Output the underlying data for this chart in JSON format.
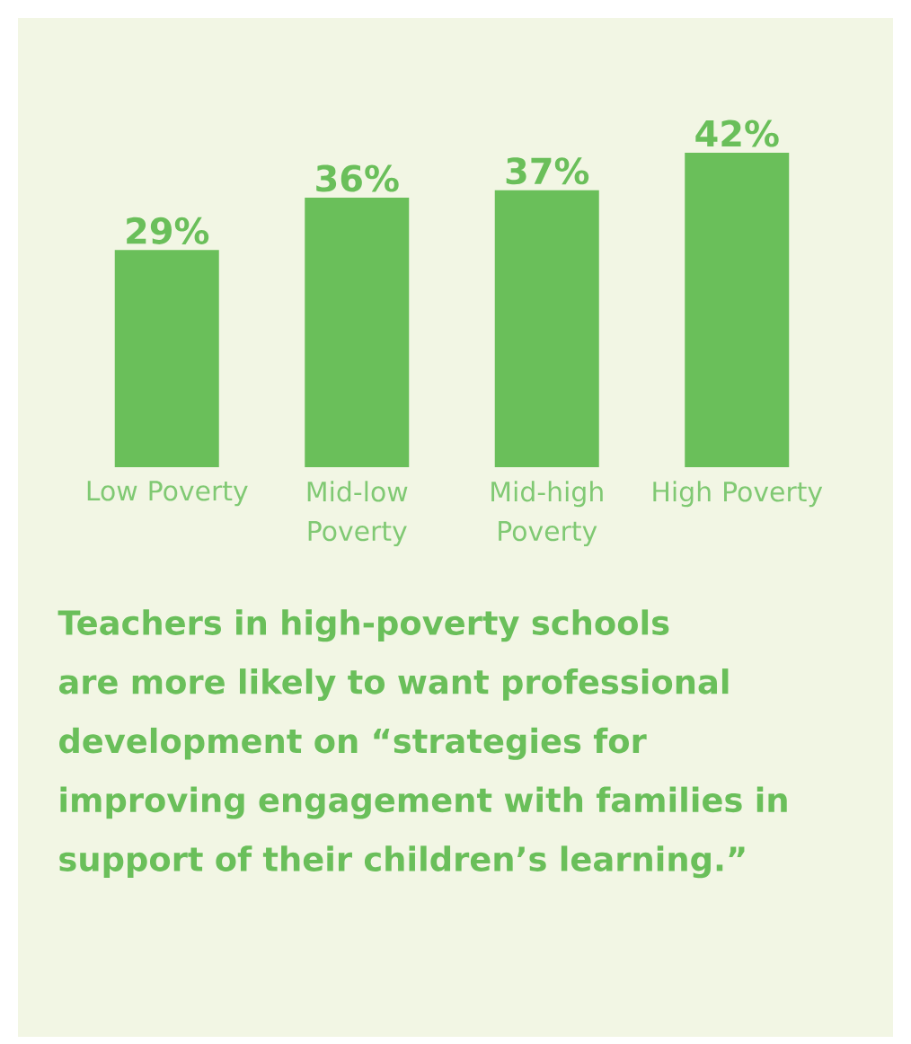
{
  "chart_data": {
    "type": "bar",
    "categories": [
      "Low Poverty",
      "Mid-low Poverty",
      "Mid-high Poverty",
      "High Poverty"
    ],
    "values": [
      29,
      36,
      37,
      42
    ],
    "value_labels": [
      "29%",
      "36%",
      "37%",
      "42%"
    ],
    "color": "#6abf5a",
    "annotations": [
      "Teachers in high-poverty schools are more likely to want professional development on “strategies for improving engagement with families in support of their children’s learning.”"
    ]
  }
}
